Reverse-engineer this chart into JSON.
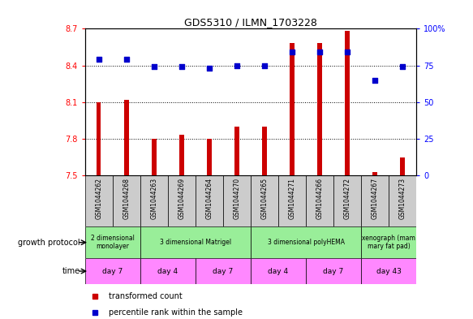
{
  "title": "GDS5310 / ILMN_1703228",
  "samples": [
    "GSM1044262",
    "GSM1044268",
    "GSM1044263",
    "GSM1044269",
    "GSM1044264",
    "GSM1044270",
    "GSM1044265",
    "GSM1044271",
    "GSM1044266",
    "GSM1044272",
    "GSM1044267",
    "GSM1044273"
  ],
  "transformed_count": [
    8.1,
    8.12,
    7.8,
    7.83,
    7.8,
    7.9,
    7.9,
    8.58,
    8.58,
    8.68,
    7.53,
    7.65
  ],
  "percentile_rank": [
    79,
    79,
    74,
    74,
    73,
    75,
    75,
    84,
    84,
    84,
    65,
    74
  ],
  "ylim_left": [
    7.5,
    8.7
  ],
  "ylim_right": [
    0,
    100
  ],
  "yticks_left": [
    7.5,
    7.8,
    8.1,
    8.4,
    8.7
  ],
  "yticks_right": [
    0,
    25,
    50,
    75,
    100
  ],
  "bar_color": "#cc0000",
  "dot_color": "#0000cc",
  "bg_color": "#ffffff",
  "sample_label_bg": "#cccccc",
  "growth_protocol_groups": [
    {
      "label": "2 dimensional\nmonolayer",
      "start": 0,
      "end": 2,
      "color": "#99ee99"
    },
    {
      "label": "3 dimensional Matrigel",
      "start": 2,
      "end": 6,
      "color": "#99ee99"
    },
    {
      "label": "3 dimensional polyHEMA",
      "start": 6,
      "end": 10,
      "color": "#99ee99"
    },
    {
      "label": "xenograph (mam\nmary fat pad)",
      "start": 10,
      "end": 12,
      "color": "#99ee99"
    }
  ],
  "time_groups": [
    {
      "label": "day 7",
      "start": 0,
      "end": 2,
      "color": "#ff88ff"
    },
    {
      "label": "day 4",
      "start": 2,
      "end": 4,
      "color": "#ff88ff"
    },
    {
      "label": "day 7",
      "start": 4,
      "end": 6,
      "color": "#ff88ff"
    },
    {
      "label": "day 4",
      "start": 6,
      "end": 8,
      "color": "#ff88ff"
    },
    {
      "label": "day 7",
      "start": 8,
      "end": 10,
      "color": "#ff88ff"
    },
    {
      "label": "day 43",
      "start": 10,
      "end": 12,
      "color": "#ff88ff"
    }
  ],
  "growth_protocol_label": "growth protocol",
  "time_label": "time",
  "legend_items": [
    {
      "label": "transformed count",
      "color": "#cc0000"
    },
    {
      "label": "percentile rank within the sample",
      "color": "#0000cc"
    }
  ]
}
